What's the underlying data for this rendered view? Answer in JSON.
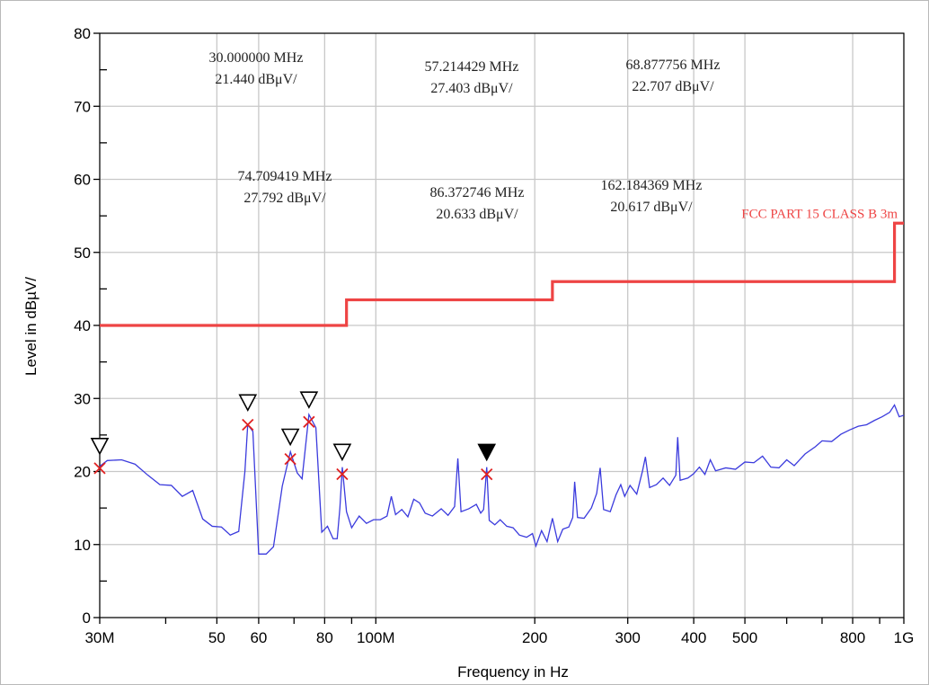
{
  "chart_data": {
    "type": "line",
    "title": "",
    "xlabel": "Frequency in Hz",
    "ylabel": "Level in dBµV/",
    "x_scale": "log",
    "xlim": [
      30000000,
      1000000000
    ],
    "ylim": [
      0,
      80
    ],
    "grid": true,
    "x_ticks": [
      {
        "value": 30000000,
        "label": "30M"
      },
      {
        "value": 50000000,
        "label": "50"
      },
      {
        "value": 60000000,
        "label": "60"
      },
      {
        "value": 80000000,
        "label": "80"
      },
      {
        "value": 100000000,
        "label": "100M"
      },
      {
        "value": 200000000,
        "label": "200"
      },
      {
        "value": 300000000,
        "label": "300"
      },
      {
        "value": 400000000,
        "label": "400"
      },
      {
        "value": 500000000,
        "label": "500"
      },
      {
        "value": 800000000,
        "label": "800"
      },
      {
        "value": 1000000000,
        "label": "1G"
      }
    ],
    "y_ticks": [
      {
        "value": 0,
        "label": "0"
      },
      {
        "value": 10,
        "label": "10"
      },
      {
        "value": 20,
        "label": "20"
      },
      {
        "value": 30,
        "label": "30"
      },
      {
        "value": 40,
        "label": "40"
      },
      {
        "value": 50,
        "label": "50"
      },
      {
        "value": 60,
        "label": "60"
      },
      {
        "value": 70,
        "label": "70"
      },
      {
        "value": 80,
        "label": "80"
      }
    ],
    "colors": {
      "trace": "#3b3bdd",
      "limit": "#ee4444",
      "marker_x": "#e02020",
      "grid": "#c8c8c8"
    },
    "series": [
      {
        "name": "",
        "kind": "measurement",
        "points": [
          [
            30000000,
            20.7
          ],
          [
            31000000,
            21.5
          ],
          [
            33000000,
            21.6
          ],
          [
            35000000,
            21.0
          ],
          [
            37000000,
            19.5
          ],
          [
            39000000,
            18.2
          ],
          [
            41000000,
            18.1
          ],
          [
            43000000,
            16.6
          ],
          [
            45000000,
            17.4
          ],
          [
            47000000,
            13.5
          ],
          [
            49000000,
            12.5
          ],
          [
            51000000,
            12.4
          ],
          [
            53000000,
            11.3
          ],
          [
            55000000,
            11.8
          ],
          [
            56500000,
            20.0
          ],
          [
            57200000,
            26.4
          ],
          [
            58500000,
            25.5
          ],
          [
            60000000,
            8.7
          ],
          [
            62000000,
            8.7
          ],
          [
            64000000,
            9.7
          ],
          [
            66500000,
            18.0
          ],
          [
            68900000,
            22.7
          ],
          [
            71000000,
            19.8
          ],
          [
            72500000,
            19.0
          ],
          [
            74700000,
            27.8
          ],
          [
            77000000,
            26.0
          ],
          [
            79000000,
            11.7
          ],
          [
            81000000,
            12.5
          ],
          [
            83000000,
            10.8
          ],
          [
            84500000,
            10.8
          ],
          [
            85500000,
            15.0
          ],
          [
            86400000,
            20.6
          ],
          [
            88000000,
            14.5
          ],
          [
            90000000,
            12.3
          ],
          [
            93000000,
            13.9
          ],
          [
            96000000,
            12.9
          ],
          [
            99000000,
            13.4
          ],
          [
            102000000,
            13.4
          ],
          [
            105000000,
            13.9
          ],
          [
            107000000,
            16.6
          ],
          [
            109000000,
            14.1
          ],
          [
            112000000,
            14.8
          ],
          [
            115000000,
            13.8
          ],
          [
            118000000,
            16.2
          ],
          [
            121000000,
            15.7
          ],
          [
            124000000,
            14.3
          ],
          [
            128000000,
            13.9
          ],
          [
            133000000,
            14.9
          ],
          [
            137000000,
            14.0
          ],
          [
            141000000,
            15.2
          ],
          [
            143000000,
            21.8
          ],
          [
            145000000,
            14.5
          ],
          [
            150000000,
            14.9
          ],
          [
            155000000,
            15.5
          ],
          [
            158000000,
            14.3
          ],
          [
            160000000,
            14.8
          ],
          [
            162200000,
            20.6
          ],
          [
            164000000,
            13.3
          ],
          [
            168000000,
            12.7
          ],
          [
            172000000,
            13.4
          ],
          [
            177000000,
            12.5
          ],
          [
            182000000,
            12.3
          ],
          [
            187000000,
            11.3
          ],
          [
            193000000,
            11.0
          ],
          [
            198000000,
            11.5
          ],
          [
            201000000,
            9.8
          ],
          [
            206000000,
            11.9
          ],
          [
            211000000,
            10.4
          ],
          [
            216000000,
            13.6
          ],
          [
            221000000,
            10.4
          ],
          [
            226000000,
            12.1
          ],
          [
            232000000,
            12.4
          ],
          [
            236000000,
            13.7
          ],
          [
            238000000,
            18.6
          ],
          [
            241000000,
            13.7
          ],
          [
            248000000,
            13.6
          ],
          [
            256000000,
            15.0
          ],
          [
            262000000,
            17.0
          ],
          [
            266000000,
            20.5
          ],
          [
            270000000,
            14.8
          ],
          [
            278000000,
            14.5
          ],
          [
            285000000,
            16.8
          ],
          [
            291000000,
            18.2
          ],
          [
            296000000,
            16.6
          ],
          [
            303000000,
            18.1
          ],
          [
            312000000,
            16.9
          ],
          [
            320000000,
            20.1
          ],
          [
            324000000,
            22.0
          ],
          [
            330000000,
            17.8
          ],
          [
            340000000,
            18.2
          ],
          [
            350000000,
            19.1
          ],
          [
            360000000,
            18.1
          ],
          [
            370000000,
            19.5
          ],
          [
            373000000,
            24.7
          ],
          [
            377000000,
            18.8
          ],
          [
            390000000,
            19.1
          ],
          [
            400000000,
            19.7
          ],
          [
            410000000,
            20.6
          ],
          [
            420000000,
            19.6
          ],
          [
            430000000,
            21.6
          ],
          [
            440000000,
            20.1
          ],
          [
            460000000,
            20.5
          ],
          [
            480000000,
            20.3
          ],
          [
            500000000,
            21.3
          ],
          [
            520000000,
            21.2
          ],
          [
            540000000,
            22.1
          ],
          [
            560000000,
            20.6
          ],
          [
            580000000,
            20.5
          ],
          [
            600000000,
            21.6
          ],
          [
            620000000,
            20.8
          ],
          [
            650000000,
            22.4
          ],
          [
            680000000,
            23.4
          ],
          [
            700000000,
            24.2
          ],
          [
            730000000,
            24.1
          ],
          [
            760000000,
            25.1
          ],
          [
            790000000,
            25.7
          ],
          [
            820000000,
            26.2
          ],
          [
            850000000,
            26.4
          ],
          [
            880000000,
            27.0
          ],
          [
            910000000,
            27.5
          ],
          [
            940000000,
            28.1
          ],
          [
            960000000,
            29.1
          ],
          [
            980000000,
            27.5
          ],
          [
            1000000000,
            27.7
          ]
        ]
      },
      {
        "name": "FCC PART 15 CLASS B  3m",
        "kind": "limit",
        "points": [
          [
            30000000,
            40
          ],
          [
            88000000,
            40
          ],
          [
            88000000,
            43.5
          ],
          [
            216000000,
            43.5
          ],
          [
            216000000,
            46
          ],
          [
            960000000,
            46
          ],
          [
            960000000,
            54
          ],
          [
            1000000000,
            54
          ]
        ]
      }
    ],
    "markers": [
      {
        "freq_mhz": 30.0,
        "level": 21.44,
        "filled": false
      },
      {
        "freq_mhz": 57.214429,
        "level": 27.403,
        "filled": false
      },
      {
        "freq_mhz": 68.877756,
        "level": 22.707,
        "filled": false
      },
      {
        "freq_mhz": 74.709419,
        "level": 27.792,
        "filled": false
      },
      {
        "freq_mhz": 86.372746,
        "level": 20.633,
        "filled": false
      },
      {
        "freq_mhz": 162.184369,
        "level": 20.617,
        "filled": true
      }
    ],
    "annotations": [
      {
        "freq": "30.000000 MHz",
        "level": "21.440 dBμV/"
      },
      {
        "freq": "57.214429 MHz",
        "level": "27.403 dBμV/"
      },
      {
        "freq": "68.877756 MHz",
        "level": "22.707 dBμV/"
      },
      {
        "freq": "74.709419 MHz",
        "level": "27.792 dBμV/"
      },
      {
        "freq": "86.372746 MHz",
        "level": "20.633 dBμV/"
      },
      {
        "freq": "162.184369 MHz",
        "level": "20.617 dBμV/"
      }
    ],
    "limit_label": "FCC PART 15 CLASS B  3m"
  }
}
